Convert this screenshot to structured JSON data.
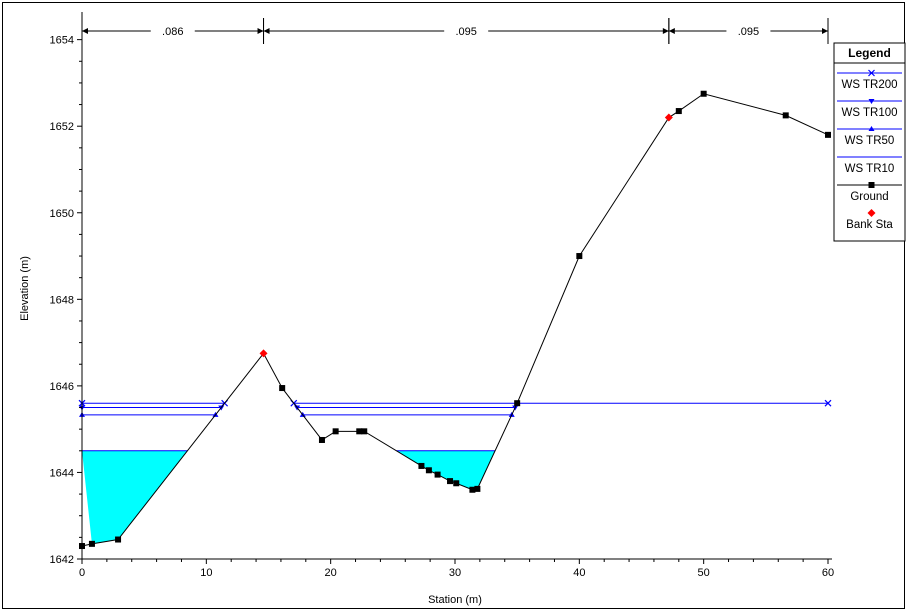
{
  "chart_data": {
    "type": "line",
    "title": "",
    "xlabel": "Station (m)",
    "ylabel": "Elevation (m)",
    "xlim": [
      0,
      60
    ],
    "ylim": [
      1642,
      1654.5
    ],
    "x_ticks": [
      0,
      10,
      20,
      30,
      40,
      50,
      60
    ],
    "y_ticks": [
      1642,
      1644,
      1646,
      1648,
      1650,
      1652,
      1654
    ],
    "manning_n": [
      {
        "label": ".086",
        "from": 0,
        "to": 14.6
      },
      {
        "label": ".095",
        "from": 14.6,
        "to": 47.2
      },
      {
        "label": ".095",
        "from": 47.2,
        "to": 60
      }
    ],
    "legend": {
      "title": "Legend",
      "position": "right",
      "entries": [
        "WS TR200",
        "WS TR100",
        "WS TR50",
        "WS TR10",
        "Ground",
        "Bank Sta"
      ]
    },
    "ground": [
      [
        0,
        1642.3
      ],
      [
        0.8,
        1642.35
      ],
      [
        2.9,
        1642.45
      ],
      [
        14.6,
        1646.75
      ],
      [
        16.1,
        1645.95
      ],
      [
        19.3,
        1644.75
      ],
      [
        20.4,
        1644.95
      ],
      [
        22.3,
        1644.95
      ],
      [
        22.7,
        1644.95
      ],
      [
        27.3,
        1644.15
      ],
      [
        27.9,
        1644.05
      ],
      [
        28.6,
        1643.95
      ],
      [
        29.6,
        1643.8
      ],
      [
        30.1,
        1643.75
      ],
      [
        31.4,
        1643.6
      ],
      [
        31.8,
        1643.62
      ],
      [
        35.0,
        1645.6
      ],
      [
        40.0,
        1649.0
      ],
      [
        47.2,
        1652.2
      ],
      [
        48.0,
        1652.35
      ],
      [
        50.0,
        1652.75
      ],
      [
        56.6,
        1652.25
      ],
      [
        60,
        1651.8
      ]
    ],
    "bank_stations": [
      [
        14.6,
        1646.75
      ],
      [
        47.2,
        1652.2
      ]
    ],
    "series": [
      {
        "name": "WS TR200",
        "elevation": 1645.6,
        "color": "#0000ff",
        "marker": "x"
      },
      {
        "name": "WS TR100",
        "elevation": 1645.5,
        "color": "#0000ff",
        "marker": "triangle-down"
      },
      {
        "name": "WS TR50",
        "elevation": 1645.33,
        "color": "#0000ff",
        "marker": "triangle-up"
      },
      {
        "name": "WS TR10",
        "elevation": 1644.5,
        "color": "#0000ff",
        "marker": "none",
        "fill": "#00ffff"
      }
    ],
    "colors": {
      "water_fill": "#00ffff",
      "ws_line": "#0000ff",
      "ground": "#000000",
      "bank": "#ff0000"
    }
  }
}
